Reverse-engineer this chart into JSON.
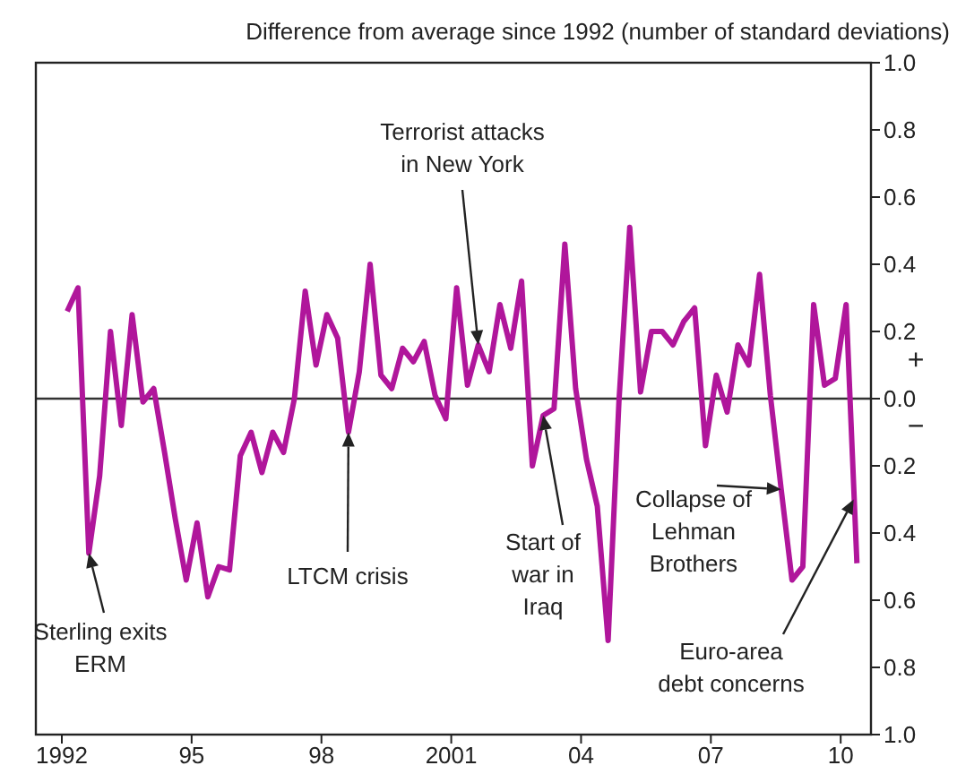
{
  "chart_data": {
    "type": "line",
    "ylabel": "Difference from average since 1992 (number of standard deviations)",
    "x": [
      1992.125,
      1992.375,
      1992.625,
      1992.875,
      1993.125,
      1993.375,
      1993.625,
      1993.875,
      1994.125,
      1994.375,
      1994.625,
      1994.875,
      1995.125,
      1995.375,
      1995.625,
      1995.875,
      1996.125,
      1996.375,
      1996.625,
      1996.875,
      1997.125,
      1997.375,
      1997.625,
      1997.875,
      1998.125,
      1998.375,
      1998.625,
      1998.875,
      1999.125,
      1999.375,
      1999.625,
      1999.875,
      2000.125,
      2000.375,
      2000.625,
      2000.875,
      2001.125,
      2001.375,
      2001.625,
      2001.875,
      2002.125,
      2002.375,
      2002.625,
      2002.875,
      2003.125,
      2003.375,
      2003.625,
      2003.875,
      2004.125,
      2004.375,
      2004.625,
      2004.875,
      2005.125,
      2005.375,
      2005.625,
      2005.875,
      2006.125,
      2006.375,
      2006.625,
      2006.875,
      2007.125,
      2007.375,
      2007.625,
      2007.875,
      2008.125,
      2008.375,
      2008.625,
      2008.875,
      2009.125,
      2009.375,
      2009.625,
      2009.875,
      2010.125,
      2010.375
    ],
    "values": [
      0.26,
      0.33,
      -0.46,
      -0.23,
      0.2,
      -0.08,
      0.25,
      -0.01,
      0.03,
      -0.16,
      -0.36,
      -0.54,
      -0.37,
      -0.59,
      -0.5,
      -0.51,
      -0.17,
      -0.1,
      -0.22,
      -0.1,
      -0.16,
      0.0,
      0.32,
      0.1,
      0.25,
      0.18,
      -0.1,
      0.08,
      0.4,
      0.07,
      0.03,
      0.15,
      0.11,
      0.17,
      0.01,
      -0.06,
      0.33,
      0.04,
      0.16,
      0.08,
      0.28,
      0.15,
      0.35,
      -0.2,
      -0.05,
      -0.03,
      0.46,
      0.03,
      -0.18,
      -0.32,
      -0.72,
      -0.01,
      0.51,
      0.02,
      0.2,
      0.2,
      0.16,
      0.23,
      0.27,
      -0.14,
      0.07,
      -0.04,
      0.16,
      0.1,
      0.37,
      0.01,
      -0.27,
      -0.54,
      -0.5,
      0.28,
      0.04,
      0.06,
      0.28,
      -0.49
    ],
    "color": "#b0169b",
    "marker": "none",
    "line_style": "solid",
    "legend": false,
    "grid": false,
    "xlim": [
      1991.4,
      2010.7
    ],
    "xticks": [
      {
        "value": 1992,
        "label": "1992"
      },
      {
        "value": 1995,
        "label": "95"
      },
      {
        "value": 1998,
        "label": "98"
      },
      {
        "value": 2001,
        "label": "2001"
      },
      {
        "value": 2004,
        "label": "04"
      },
      {
        "value": 2007,
        "label": "07"
      },
      {
        "value": 2010,
        "label": "10"
      }
    ],
    "ylim": [
      -1,
      1
    ],
    "yticks": [
      {
        "value": -1,
        "label": "1.0"
      },
      {
        "value": -0.8,
        "label": "0.8"
      },
      {
        "value": -0.6,
        "label": "0.6"
      },
      {
        "value": -0.4,
        "label": "0.4"
      },
      {
        "value": -0.2,
        "label": "0.2"
      },
      {
        "value": 0,
        "label": "0.0"
      },
      {
        "value": 0.2,
        "label": "0.2"
      },
      {
        "value": 0.4,
        "label": "0.4"
      },
      {
        "value": 0.6,
        "label": "0.6"
      },
      {
        "value": 0.8,
        "label": "0.8"
      },
      {
        "value": 1,
        "label": "1.0"
      }
    ],
    "ref_lines": [
      {
        "axis": "y",
        "value": 0,
        "color": "#333333"
      }
    ],
    "annotations": [
      {
        "text": "Sterling exits ERM",
        "x": 1992.625,
        "y": -0.46
      },
      {
        "text": "LTCM crisis",
        "x": 1998.625,
        "y": -0.1
      },
      {
        "text": "Terrorist attacks in New York",
        "x": 2001.625,
        "y": 0.16
      },
      {
        "text": "Start of war in Iraq",
        "x": 2003.125,
        "y": -0.05
      },
      {
        "text": "Collapse of Lehman Brothers",
        "x": 2008.625,
        "y": -0.27
      },
      {
        "text": "Euro-area debt concerns",
        "x": 2010.3,
        "y": -0.3
      },
      "+",
      "−"
    ]
  }
}
